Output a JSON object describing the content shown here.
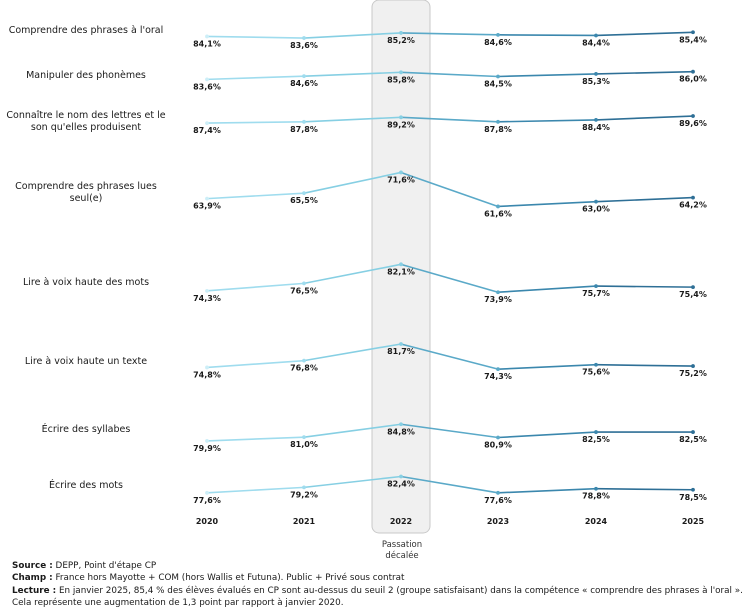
{
  "chart_data": {
    "type": "line",
    "x": [
      "2020",
      "2021",
      "2022",
      "2023",
      "2024",
      "2025"
    ],
    "highlight": {
      "category": "2022",
      "note": "Passation décalée"
    },
    "series": [
      {
        "name": "Comprendre des phrases à l'oral",
        "values": [
          84.1,
          83.6,
          85.2,
          84.6,
          84.4,
          85.4
        ],
        "labels": [
          "84,1%",
          "83,6%",
          "85,2%",
          "84,6%",
          "84,4%",
          "85,4%"
        ]
      },
      {
        "name": "Manipuler des phonèmes",
        "values": [
          83.6,
          84.6,
          85.8,
          84.5,
          85.3,
          86.0
        ],
        "labels": [
          "83,6%",
          "84,6%",
          "85,8%",
          "84,5%",
          "85,3%",
          "86,0%"
        ]
      },
      {
        "name": "Connaître le nom des lettres et le son qu'elles produisent",
        "values": [
          87.4,
          87.8,
          89.2,
          87.8,
          88.4,
          89.6
        ],
        "labels": [
          "87,4%",
          "87,8%",
          "89,2%",
          "87,8%",
          "88,4%",
          "89,6%"
        ]
      },
      {
        "name": "Comprendre des phrases lues seul(e)",
        "values": [
          63.9,
          65.5,
          71.6,
          61.6,
          63.0,
          64.2
        ],
        "labels": [
          "63,9%",
          "65,5%",
          "71,6%",
          "61,6%",
          "63,0%",
          "64,2%"
        ]
      },
      {
        "name": "Lire à voix haute des mots",
        "values": [
          74.3,
          76.5,
          82.1,
          73.9,
          75.7,
          75.4
        ],
        "labels": [
          "74,3%",
          "76,5%",
          "82,1%",
          "73,9%",
          "75,7%",
          "75,4%"
        ]
      },
      {
        "name": "Lire à voix haute un texte",
        "values": [
          74.8,
          76.8,
          81.7,
          74.3,
          75.6,
          75.2
        ],
        "labels": [
          "74,8%",
          "76,8%",
          "81,7%",
          "74,3%",
          "75,6%",
          "75,2%"
        ]
      },
      {
        "name": "Écrire des syllabes",
        "values": [
          79.9,
          81.0,
          84.8,
          80.9,
          82.5,
          82.5
        ],
        "labels": [
          "79,9%",
          "81,0%",
          "84,8%",
          "80,9%",
          "82,5%",
          "82,5%"
        ]
      },
      {
        "name": "Écrire des mots",
        "values": [
          77.6,
          79.2,
          82.4,
          77.6,
          78.8,
          78.5
        ],
        "labels": [
          "77,6%",
          "79,2%",
          "82,4%",
          "77,6%",
          "78,8%",
          "78,5%"
        ]
      }
    ],
    "colors": [
      "#cdeef7",
      "#9fdcee",
      "#86cfe3",
      "#5aa9c8",
      "#3b87ad",
      "#2e6f96"
    ],
    "grid": false,
    "legend": "none"
  },
  "footer": {
    "source_label": "Source :",
    "source_text": "DEPP, Point d'étape CP",
    "champ_label": "Champ :",
    "champ_text": "France hors Mayotte + COM (hors Wallis et Futuna). Public + Privé sous contrat",
    "lecture_label": "Lecture :",
    "lecture_text": "En janvier 2025, 85,4 % des élèves évalués en CP sont au-dessus du seuil 2 (groupe satisfaisant) dans la compétence « comprendre des phrases à l'oral ». Cela représente une augmentation de 1,3 point par rapport à janvier 2020."
  }
}
